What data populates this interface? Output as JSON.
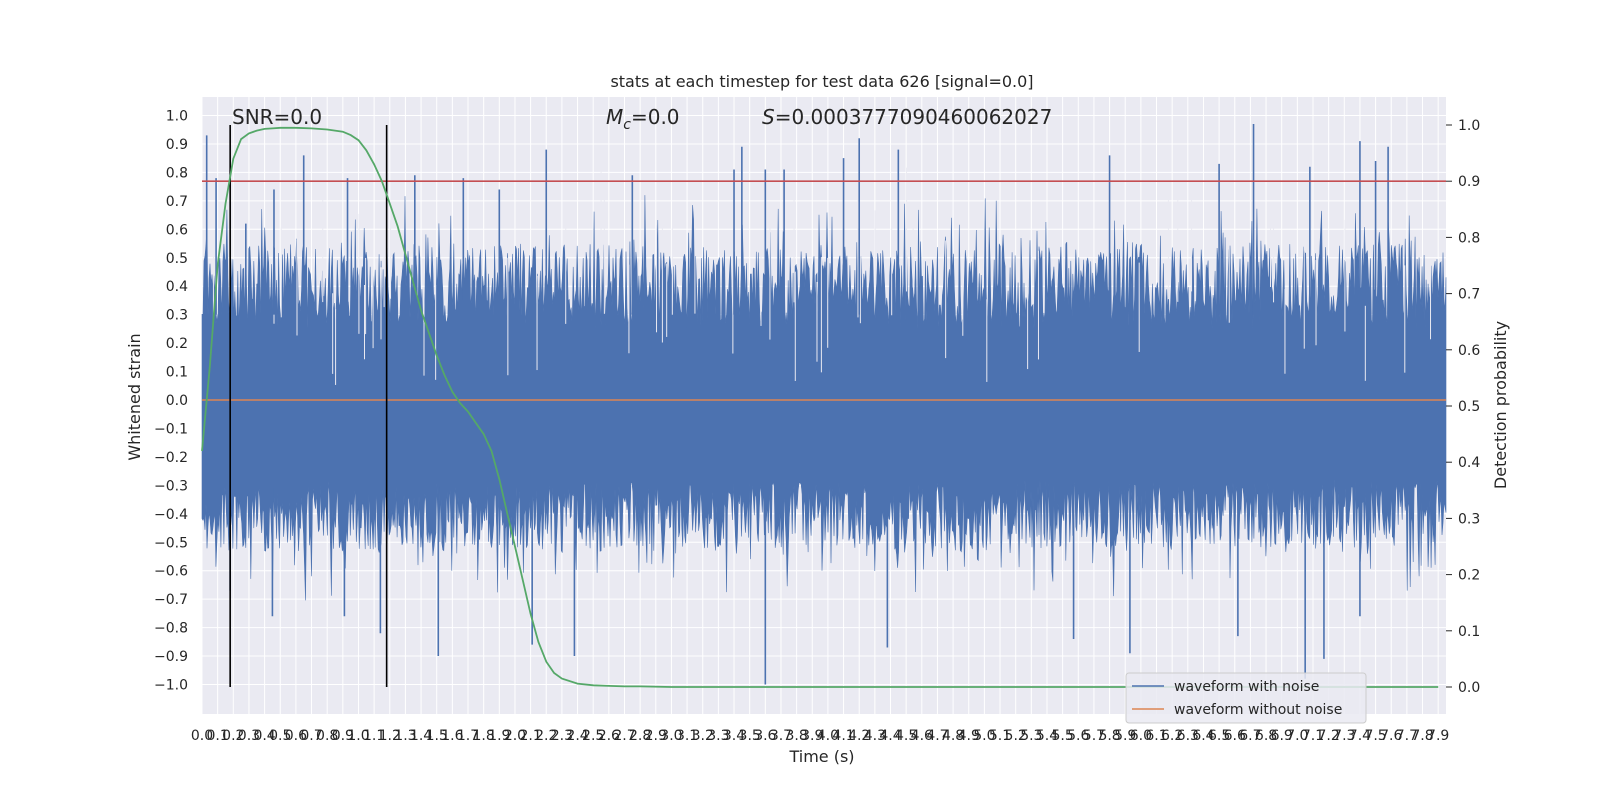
{
  "chart_data": {
    "type": "line",
    "title": "stats at each timestep for test data 626 [signal=0.0]",
    "xlabel": "Time (s)",
    "ylabel": "Whitened strain",
    "y2label": "Detection probability",
    "xlim": [
      0.0,
      7.95
    ],
    "ylim": [
      -1.1,
      1.1
    ],
    "y2lim": [
      -0.05,
      1.05
    ],
    "grid": true,
    "legend_position": "lower-right",
    "x_ticks": [
      "0.0",
      "0.1",
      "0.2",
      "0.3",
      "0.4",
      "0.5",
      "0.6",
      "0.7",
      "0.8",
      "0.9",
      "1.0",
      "1.1",
      "1.2",
      "1.3",
      "1.4",
      "1.5",
      "1.6",
      "1.7",
      "1.8",
      "1.9",
      "2.0",
      "2.1",
      "2.2",
      "2.3",
      "2.4",
      "2.5",
      "2.6",
      "2.7",
      "2.8",
      "2.9",
      "3.0",
      "3.1",
      "3.2",
      "3.3",
      "3.4",
      "3.5",
      "3.6",
      "3.7",
      "3.8",
      "3.9",
      "4.0",
      "4.1",
      "4.2",
      "4.3",
      "4.4",
      "4.5",
      "4.6",
      "4.7",
      "4.8",
      "4.9",
      "5.0",
      "5.1",
      "5.2",
      "5.3",
      "5.4",
      "5.5",
      "5.6",
      "5.7",
      "5.8",
      "5.9",
      "6.0",
      "6.1",
      "6.2",
      "6.3",
      "6.4",
      "6.5",
      "6.6",
      "6.7",
      "6.8",
      "6.9",
      "7.0",
      "7.1",
      "7.2",
      "7.3",
      "7.4",
      "7.5",
      "7.6",
      "7.7",
      "7.8",
      "7.9"
    ],
    "y_ticks": [
      "1.0",
      "0.9",
      "0.8",
      "0.7",
      "0.6",
      "0.5",
      "0.4",
      "0.3",
      "0.2",
      "0.1",
      "0.0",
      "−0.1",
      "−0.2",
      "−0.3",
      "−0.4",
      "−0.5",
      "−0.6",
      "−0.7",
      "−0.8",
      "−0.9",
      "−1.0"
    ],
    "y2_ticks": [
      "1.0",
      "0.9",
      "0.8",
      "0.7",
      "0.6",
      "0.5",
      "0.4",
      "0.3",
      "0.2",
      "0.1",
      "0.0"
    ],
    "annotations": {
      "snr": "SNR=0.0",
      "mc": "=0.0",
      "mc_symbol": "M",
      "mc_sub": "c",
      "s": "=0.0003777090460062027",
      "s_symbol": "S"
    },
    "vlines": [
      0.18,
      1.18
    ],
    "threshold": 0.9,
    "series": [
      {
        "name": "waveform with noise",
        "color": "#4c72b0",
        "envelope_upper_typical": 0.55,
        "envelope_lower_typical": -0.5,
        "peaks_upper": [
          [
            0.03,
            0.93
          ],
          [
            0.09,
            0.78
          ],
          [
            0.28,
            0.62
          ],
          [
            0.46,
            0.74
          ],
          [
            0.65,
            0.86
          ],
          [
            0.93,
            0.78
          ],
          [
            1.36,
            0.79
          ],
          [
            1.67,
            0.78
          ],
          [
            1.9,
            0.74
          ],
          [
            2.2,
            0.88
          ],
          [
            2.75,
            0.79
          ],
          [
            3.4,
            0.81
          ],
          [
            3.45,
            0.89
          ],
          [
            3.6,
            0.81
          ],
          [
            3.72,
            0.81
          ],
          [
            4.1,
            0.85
          ],
          [
            4.2,
            0.92
          ],
          [
            4.45,
            0.88
          ],
          [
            5.8,
            0.86
          ],
          [
            6.5,
            0.83
          ],
          [
            6.72,
            0.97
          ],
          [
            7.08,
            0.82
          ],
          [
            7.4,
            0.91
          ],
          [
            7.5,
            0.84
          ],
          [
            7.58,
            0.89
          ]
        ],
        "peaks_lower": [
          [
            0.18,
            -0.67
          ],
          [
            0.45,
            -0.76
          ],
          [
            0.91,
            -0.76
          ],
          [
            1.14,
            -0.82
          ],
          [
            1.51,
            -0.9
          ],
          [
            2.11,
            -0.86
          ],
          [
            2.38,
            -0.9
          ],
          [
            3.6,
            -1.0
          ],
          [
            4.38,
            -0.87
          ],
          [
            5.57,
            -0.84
          ],
          [
            5.93,
            -0.89
          ],
          [
            6.62,
            -0.83
          ],
          [
            7.05,
            -0.98
          ],
          [
            7.17,
            -0.91
          ],
          [
            7.4,
            -0.76
          ]
        ]
      },
      {
        "name": "waveform without noise",
        "color": "#dd8452",
        "value": 0.0
      },
      {
        "name": "detection probability",
        "color": "#55a868",
        "axis": "right",
        "x": [
          0.0,
          0.05,
          0.1,
          0.15,
          0.2,
          0.25,
          0.3,
          0.35,
          0.4,
          0.45,
          0.5,
          0.6,
          0.7,
          0.8,
          0.9,
          0.95,
          1.0,
          1.05,
          1.1,
          1.15,
          1.2,
          1.25,
          1.3,
          1.35,
          1.4,
          1.45,
          1.5,
          1.55,
          1.6,
          1.65,
          1.7,
          1.75,
          1.8,
          1.85,
          1.9,
          1.95,
          2.0,
          2.05,
          2.1,
          2.15,
          2.2,
          2.25,
          2.3,
          2.4,
          2.5,
          2.6,
          2.7,
          2.8,
          3.0,
          3.5,
          4.0,
          5.0,
          6.0,
          7.0,
          7.9
        ],
        "y": [
          0.42,
          0.57,
          0.75,
          0.86,
          0.94,
          0.975,
          0.985,
          0.99,
          0.993,
          0.994,
          0.995,
          0.995,
          0.994,
          0.992,
          0.988,
          0.982,
          0.973,
          0.955,
          0.93,
          0.9,
          0.86,
          0.82,
          0.77,
          0.72,
          0.67,
          0.63,
          0.59,
          0.555,
          0.525,
          0.505,
          0.49,
          0.47,
          0.45,
          0.42,
          0.37,
          0.31,
          0.25,
          0.19,
          0.13,
          0.08,
          0.045,
          0.025,
          0.015,
          0.006,
          0.003,
          0.002,
          0.001,
          0.001,
          0.0,
          0.0,
          0.0,
          0.0,
          0.0,
          0.0,
          0.0
        ]
      }
    ]
  }
}
